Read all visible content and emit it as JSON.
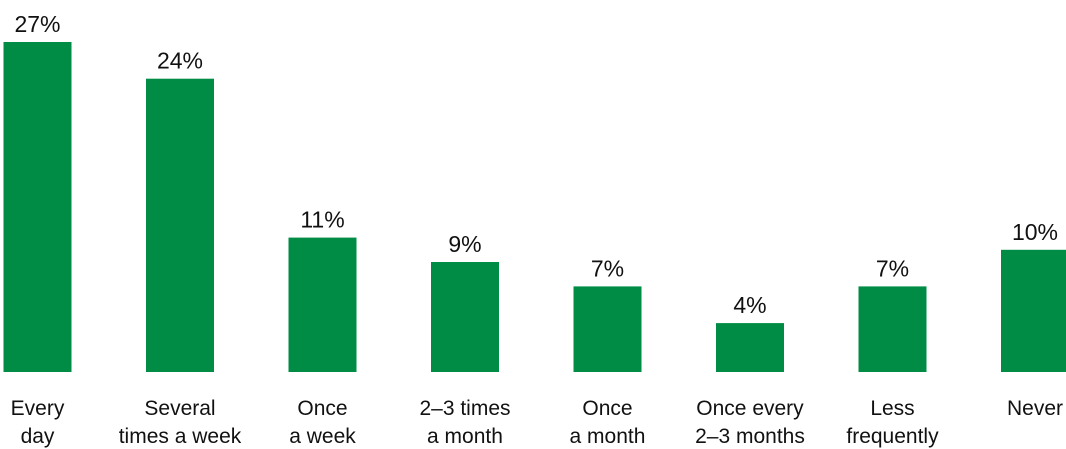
{
  "colors": {
    "bar": "#008C45",
    "text": "#111111",
    "background": "#FFFFFF"
  },
  "chart_data": {
    "type": "bar",
    "title": "",
    "xlabel": "",
    "ylabel": "",
    "value_format": "percent",
    "grid": false,
    "legend": "none",
    "ylim": [
      0,
      27
    ],
    "categories": [
      [
        "Every",
        "day"
      ],
      [
        "Several",
        "times a week"
      ],
      [
        "Once",
        "a week"
      ],
      [
        "2–3 times",
        "a month"
      ],
      [
        "Once",
        "a month"
      ],
      [
        "Once every",
        "2–3 months"
      ],
      [
        "Less",
        "frequently"
      ],
      [
        "Never"
      ]
    ],
    "values": [
      27,
      24,
      11,
      9,
      7,
      4,
      7,
      10
    ],
    "data_labels": [
      "27%",
      "24%",
      "11%",
      "9%",
      "7%",
      "4%",
      "7%",
      "10%"
    ]
  }
}
